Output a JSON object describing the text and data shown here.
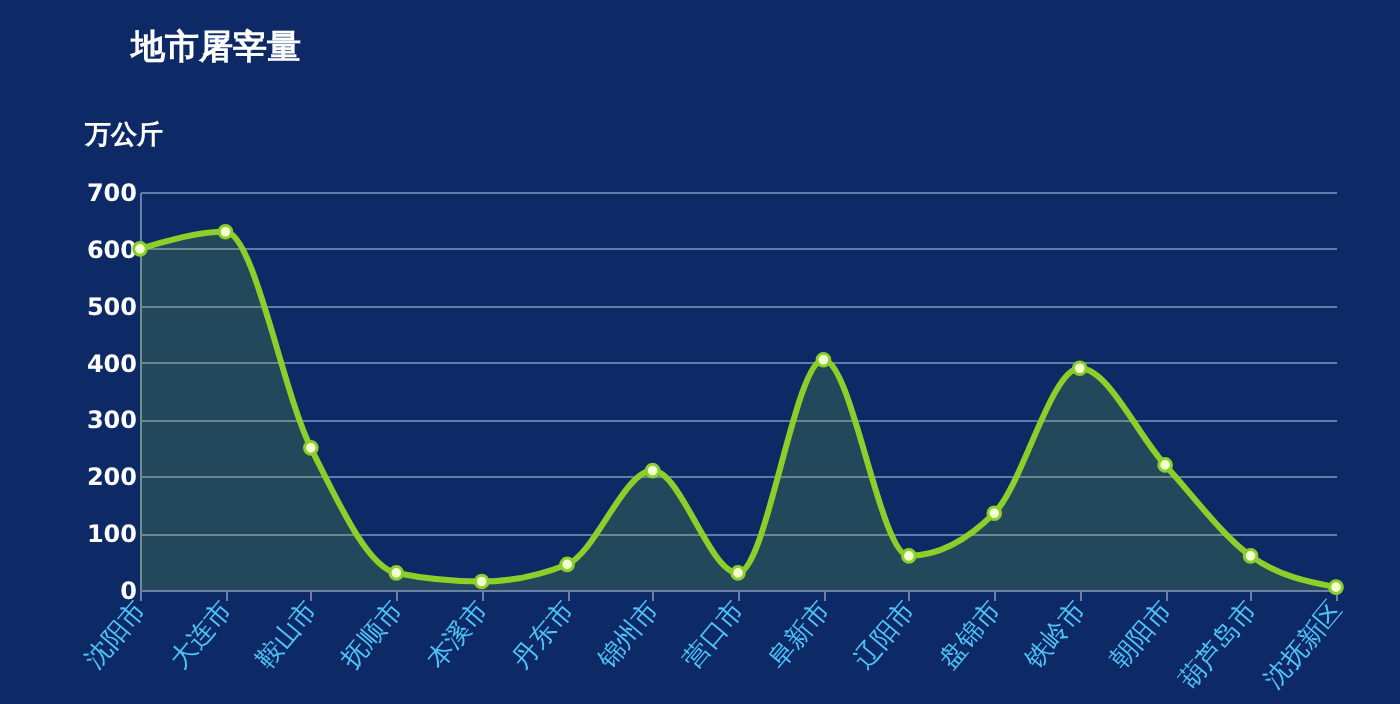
{
  "chart_data": {
    "type": "area",
    "title": "地市屠宰量",
    "ylabel": "万公斤",
    "categories": [
      "沈阳市",
      "大连市",
      "鞍山市",
      "抚顺市",
      "本溪市",
      "丹东市",
      "锦州市",
      "营口市",
      "阜新市",
      "辽阳市",
      "盘锦市",
      "铁岭市",
      "朝阳市",
      "葫芦岛市",
      "沈抚新区"
    ],
    "series": [
      {
        "color": "#8ccf2a",
        "values": [
          600,
          630,
          250,
          30,
          15,
          45,
          210,
          30,
          405,
          60,
          135,
          390,
          220,
          60,
          5
        ]
      }
    ],
    "ylim": [
      0,
      700
    ],
    "yticks": [
      0,
      100,
      200,
      300,
      400,
      500,
      600,
      700
    ],
    "grid": "y",
    "marker": "circle"
  }
}
